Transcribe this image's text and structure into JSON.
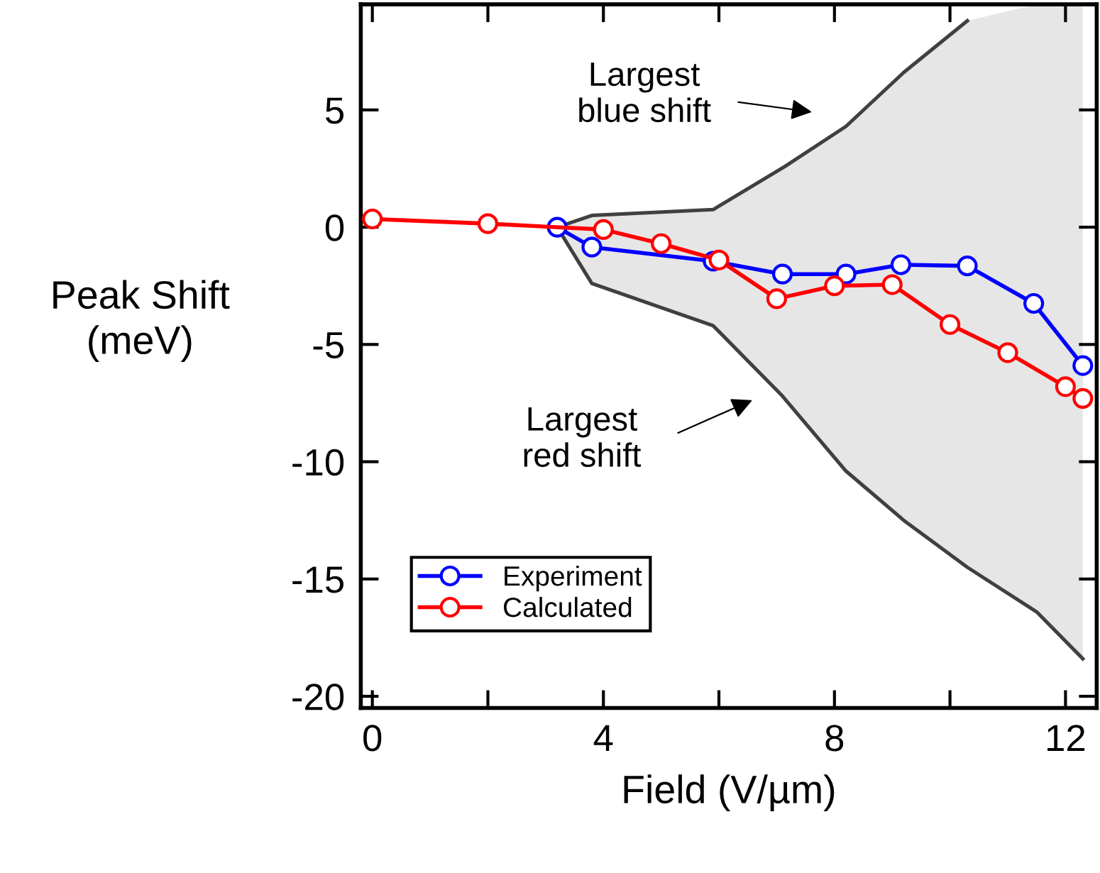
{
  "chart_data": {
    "type": "line",
    "xlabel": "Field (V/µm)",
    "ylabel": "Peak Shift\n(meV)",
    "xlim": [
      -0.2,
      12.54
    ],
    "ylim": [
      -20.5,
      9.5
    ],
    "xticks": [
      0,
      {
        "value": 2,
        "label": null
      },
      4,
      {
        "value": 6,
        "label": null
      },
      8,
      {
        "value": 10,
        "label": null
      },
      12
    ],
    "yticks": [
      -20,
      -15,
      -10,
      -5,
      0,
      5
    ],
    "grid": false,
    "legend": "bottom left",
    "marker": "circle",
    "line_style": "solid",
    "series": [
      {
        "marker": "none",
        "color": "#404040",
        "x": [
          3.2,
          3.8,
          5.9,
          7.15,
          8.2,
          9.2,
          10.3
        ],
        "values": [
          0,
          0.5,
          0.75,
          2.6,
          4.3,
          6.6,
          8.8
        ]
      },
      {
        "marker": "none",
        "color": "#404040",
        "x": [
          3.2,
          3.8,
          5.9,
          7.1,
          8.2,
          9.2,
          10.3,
          11.5,
          12.3
        ],
        "values": [
          0,
          -2.4,
          -4.2,
          -7.2,
          -10.4,
          -12.5,
          -14.5,
          -16.4,
          -18.4
        ],
        "lower": [
          0,
          -2.4,
          -4.2,
          -7.2,
          -10.4,
          -12.5,
          -14.5,
          -16.4,
          -18.4
        ],
        "upper": [
          0,
          0.5,
          0.75,
          2.6,
          4.3,
          6.6,
          8.8,
          9.5,
          9.5
        ]
      },
      {
        "name": "Experiment",
        "color": "#0000ff",
        "x": [
          3.2,
          3.8,
          5.9,
          7.1,
          8.2,
          9.15,
          10.3,
          11.45,
          12.3
        ],
        "values": [
          0,
          -0.85,
          -1.45,
          -2.0,
          -2.0,
          -1.6,
          -1.65,
          -3.25,
          -5.9
        ]
      },
      {
        "name": "Calculated",
        "color": "#ff0000",
        "x": [
          0,
          2,
          4,
          5,
          6,
          7,
          8,
          9,
          10,
          11,
          12,
          12.3
        ],
        "values": [
          0.35,
          0.15,
          -0.1,
          -0.7,
          -1.4,
          -3.05,
          -2.5,
          -2.45,
          -4.15,
          -5.35,
          -6.8,
          -7.3
        ]
      }
    ],
    "annotations": [
      "Largest\nblue shift",
      "Largest\nred shift"
    ]
  }
}
